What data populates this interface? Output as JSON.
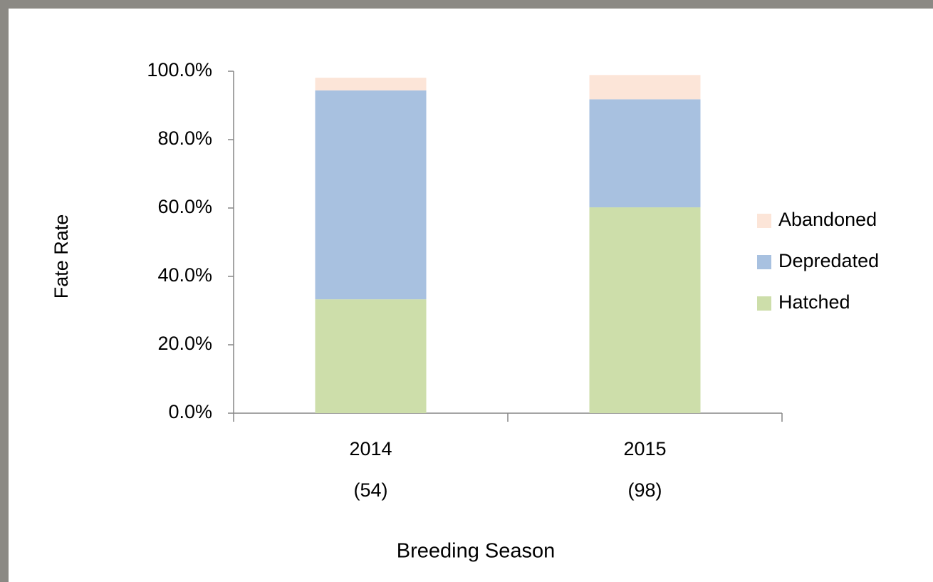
{
  "chart_data": {
    "type": "stacked-bar",
    "x_label": "Breeding Season",
    "y_label": "Fate Rate",
    "categories": [
      "2014",
      "2015"
    ],
    "category_counts": [
      "(54)",
      "(98)"
    ],
    "series": [
      {
        "name": "Hatched",
        "color": "#cddeaa",
        "values": [
          33.3,
          60.2
        ]
      },
      {
        "name": "Depredated",
        "color": "#a8c1e0",
        "values": [
          61.1,
          31.6
        ]
      },
      {
        "name": "Abandoned",
        "color": "#fce5d8",
        "values": [
          3.7,
          7.1
        ]
      }
    ],
    "ylim": [
      0,
      100
    ],
    "yticks": [
      {
        "value": 0,
        "label": "0.0%"
      },
      {
        "value": 20,
        "label": "20.0%"
      },
      {
        "value": 40,
        "label": "40.0%"
      },
      {
        "value": 60,
        "label": "60.0%"
      },
      {
        "value": 80,
        "label": "80.0%"
      },
      {
        "value": 100,
        "label": "100.0%"
      }
    ],
    "legend": "right"
  }
}
